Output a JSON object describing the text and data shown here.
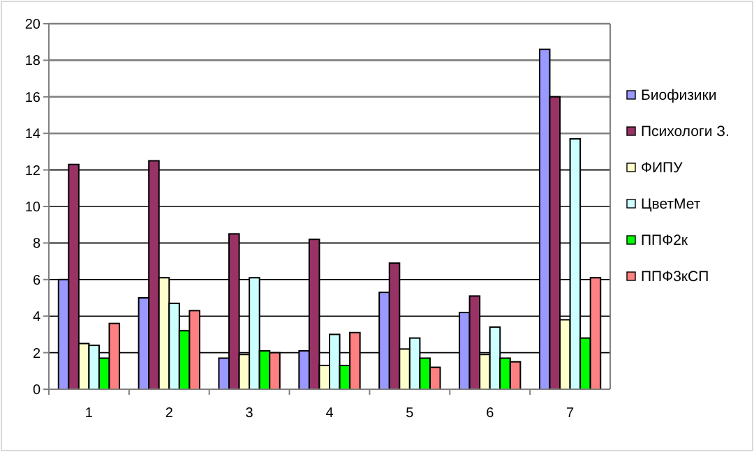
{
  "chart_data": {
    "type": "bar",
    "categories": [
      "1",
      "2",
      "3",
      "4",
      "5",
      "6",
      "7"
    ],
    "series": [
      {
        "name": "Биофизики",
        "color": "#9999ff",
        "values": [
          6.0,
          5.0,
          1.7,
          2.1,
          5.3,
          4.2,
          18.6
        ]
      },
      {
        "name": "Психологи З.",
        "color": "#993366",
        "values": [
          12.3,
          12.5,
          8.5,
          8.2,
          6.9,
          5.1,
          16.0
        ]
      },
      {
        "name": "ФИПУ",
        "color": "#ffffcc",
        "values": [
          2.5,
          6.1,
          1.9,
          1.3,
          2.2,
          1.9,
          3.8
        ]
      },
      {
        "name": "ЦветМет",
        "color": "#ccffff",
        "values": [
          2.4,
          4.7,
          6.1,
          3.0,
          2.8,
          3.4,
          13.7
        ]
      },
      {
        "name": "ППФ2к",
        "color": "#00ff00",
        "values": [
          1.7,
          3.2,
          2.1,
          1.3,
          1.7,
          1.7,
          2.8
        ]
      },
      {
        "name": "ППФ3кСП",
        "color": "#ff8080",
        "values": [
          3.6,
          4.3,
          2.0,
          3.1,
          1.2,
          1.5,
          6.1
        ]
      }
    ],
    "ylim": [
      0,
      20
    ],
    "yticks": [
      0,
      2,
      4,
      6,
      8,
      10,
      12,
      14,
      16,
      18,
      20
    ],
    "grid": "y",
    "legend": "right"
  }
}
